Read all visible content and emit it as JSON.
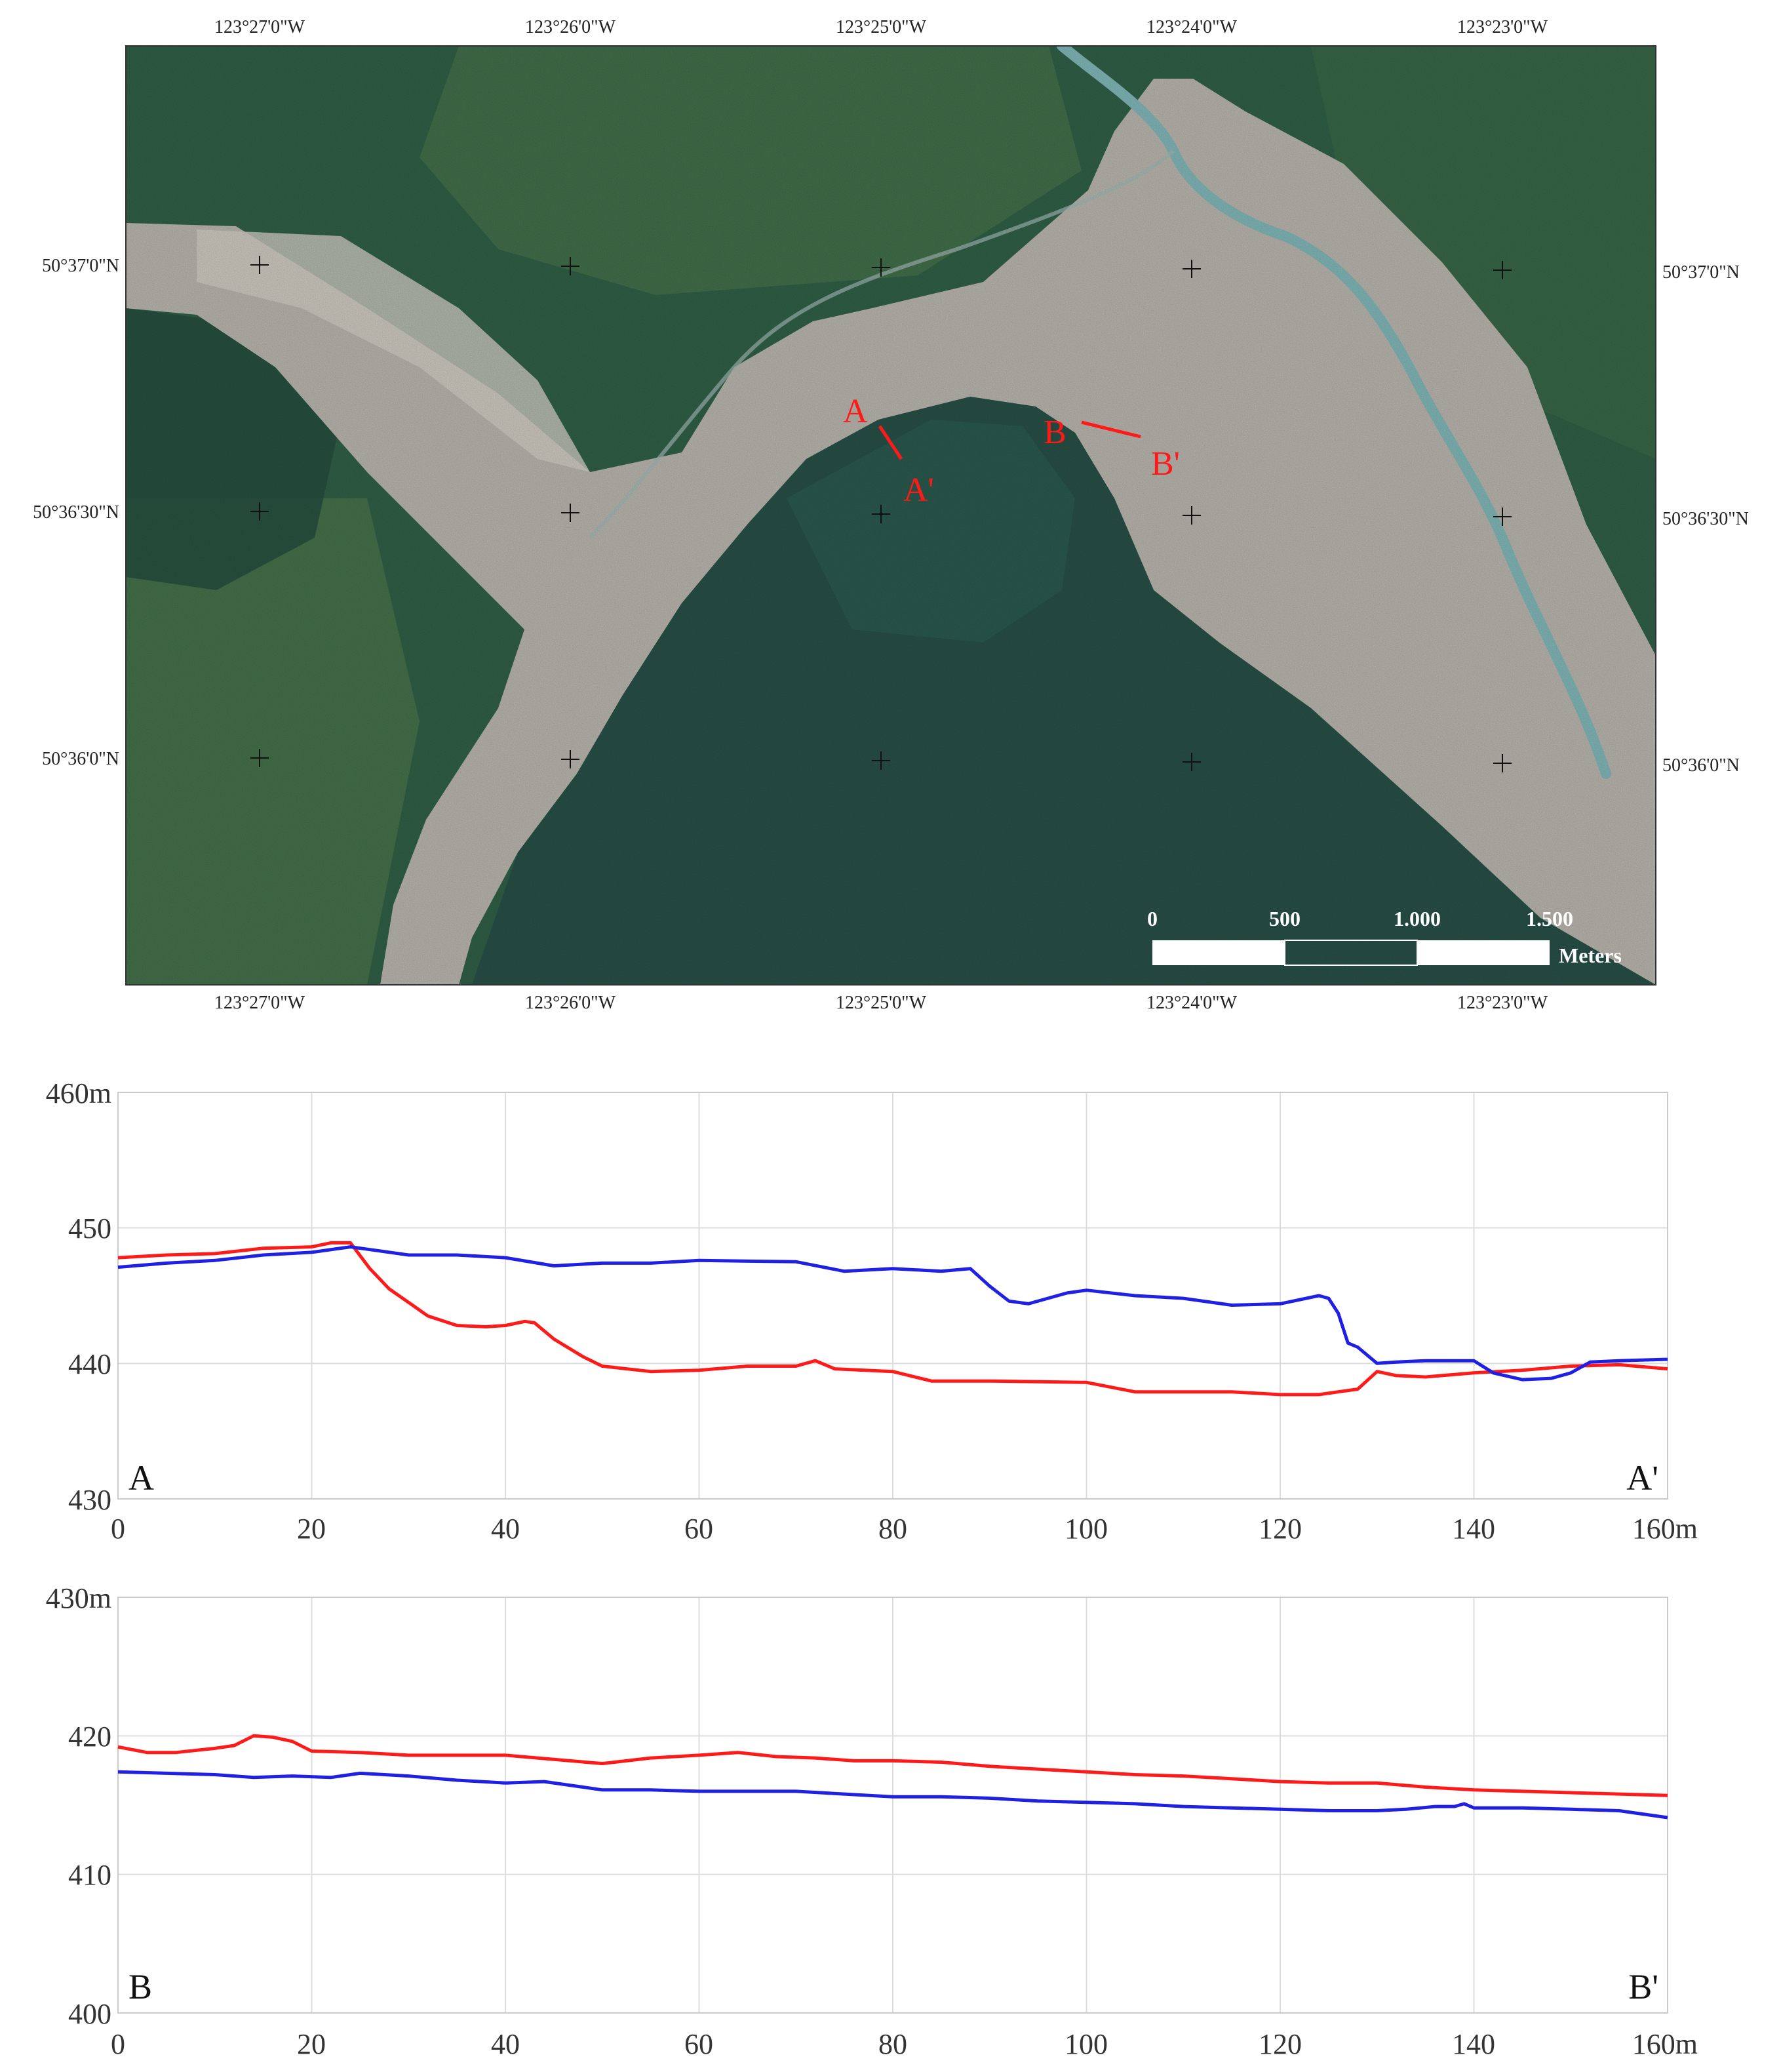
{
  "map": {
    "top_longitudes": [
      "123°27'0\"W",
      "123°26'0\"W",
      "123°25'0\"W",
      "123°24'0\"W",
      "123°23'0\"W"
    ],
    "bottom_longitudes": [
      "123°27'0\"W",
      "123°26'0\"W",
      "123°25'0\"W",
      "123°24'0\"W",
      "123°23'0\"W"
    ],
    "left_latitudes": [
      "50°37'0\"N",
      "50°36'30\"N",
      "50°36'0\"N"
    ],
    "right_latitudes": [
      "50°37'0\"N",
      "50°36'30\"N",
      "50°36'0\"N"
    ],
    "profile_labels": {
      "a_start": "A",
      "a_end": "A'",
      "b_start": "B",
      "b_end": "B'"
    },
    "profile_line_color": "#ff1a1a",
    "scale_bar": {
      "ticks": [
        "0",
        "500",
        "1.000",
        "1.500"
      ],
      "unit": "Meters"
    },
    "colors": {
      "forest": "#2f5e45",
      "deposit": "#b6b3ab",
      "river": "#7fb4b5",
      "shadow": "#274f45"
    }
  },
  "chart_data": [
    {
      "type": "line",
      "profile": "A-A'",
      "corner_left": "A",
      "corner_right": "A'",
      "xlim": [
        0,
        160
      ],
      "ylim": [
        430,
        460
      ],
      "x_ticks": [
        "0",
        "20",
        "40",
        "60",
        "80",
        "100",
        "120",
        "140",
        "160m"
      ],
      "y_ticks": [
        "430",
        "440",
        "450",
        "460m"
      ],
      "grid": true,
      "series": [
        {
          "color": "#ff1a1a",
          "x": [
            0,
            5,
            10,
            15,
            20,
            22,
            24,
            26,
            28,
            30,
            32,
            35,
            38,
            40,
            42,
            43,
            45,
            48,
            50,
            55,
            60,
            65,
            70,
            72,
            74,
            80,
            84,
            90,
            100,
            105,
            110,
            115,
            120,
            124,
            126,
            128,
            130,
            132,
            135,
            140,
            145,
            150,
            155,
            160
          ],
          "y": [
            447.8,
            448.0,
            448.1,
            448.5,
            448.6,
            448.9,
            448.9,
            447.0,
            445.5,
            444.5,
            443.5,
            442.8,
            442.7,
            442.8,
            443.1,
            443.0,
            441.8,
            440.5,
            439.8,
            439.4,
            439.5,
            439.8,
            439.8,
            440.2,
            439.6,
            439.4,
            438.7,
            438.7,
            438.6,
            437.9,
            437.9,
            437.9,
            437.7,
            437.7,
            437.9,
            438.1,
            439.4,
            439.1,
            439.0,
            439.3,
            439.5,
            439.8,
            439.9,
            439.6
          ]
        },
        {
          "color": "#1f1fe6",
          "x": [
            0,
            5,
            10,
            15,
            20,
            24,
            26,
            30,
            35,
            40,
            45,
            50,
            55,
            60,
            70,
            75,
            80,
            85,
            88,
            90,
            92,
            94,
            96,
            98,
            100,
            105,
            110,
            115,
            120,
            124,
            125,
            126,
            127,
            128,
            130,
            132,
            135,
            140,
            142,
            145,
            148,
            150,
            152,
            155,
            160
          ],
          "y": [
            447.1,
            447.4,
            447.6,
            448.0,
            448.2,
            448.6,
            448.4,
            448.0,
            448.0,
            447.8,
            447.2,
            447.4,
            447.4,
            447.6,
            447.5,
            446.8,
            447.0,
            446.8,
            447.0,
            445.7,
            444.6,
            444.4,
            444.8,
            445.2,
            445.4,
            445.0,
            444.8,
            444.3,
            444.4,
            445.0,
            444.8,
            443.7,
            441.5,
            441.2,
            440.0,
            440.1,
            440.2,
            440.2,
            439.3,
            438.8,
            438.9,
            439.3,
            440.1,
            440.2,
            440.3
          ]
        }
      ]
    },
    {
      "type": "line",
      "profile": "B-B'",
      "corner_left": "B",
      "corner_right": "B'",
      "xlim": [
        0,
        160
      ],
      "ylim": [
        400,
        430
      ],
      "x_ticks": [
        "0",
        "20",
        "40",
        "60",
        "80",
        "100",
        "120",
        "140",
        "160m"
      ],
      "y_ticks": [
        "400",
        "410",
        "420",
        "430m"
      ],
      "grid": true,
      "series": [
        {
          "color": "#ff1a1a",
          "x": [
            0,
            3,
            6,
            10,
            12,
            14,
            16,
            18,
            20,
            25,
            30,
            35,
            40,
            45,
            50,
            55,
            60,
            64,
            68,
            72,
            76,
            80,
            85,
            90,
            95,
            100,
            105,
            110,
            115,
            120,
            125,
            130,
            135,
            140,
            145,
            150,
            155,
            160
          ],
          "y": [
            419.2,
            418.8,
            418.8,
            419.1,
            419.3,
            420.0,
            419.9,
            419.6,
            418.9,
            418.8,
            418.6,
            418.6,
            418.6,
            418.3,
            418.0,
            418.4,
            418.6,
            418.8,
            418.5,
            418.4,
            418.2,
            418.2,
            418.1,
            417.8,
            417.6,
            417.4,
            417.2,
            417.1,
            416.9,
            416.7,
            416.6,
            416.6,
            416.3,
            416.1,
            416.0,
            415.9,
            415.8,
            415.7
          ]
        },
        {
          "color": "#1f1fe6",
          "x": [
            0,
            5,
            10,
            14,
            18,
            22,
            25,
            30,
            35,
            40,
            44,
            48,
            50,
            55,
            60,
            65,
            70,
            75,
            80,
            85,
            90,
            95,
            100,
            105,
            110,
            115,
            120,
            125,
            130,
            133,
            136,
            138,
            139,
            140,
            145,
            150,
            155,
            160
          ],
          "y": [
            417.4,
            417.3,
            417.2,
            417.0,
            417.1,
            417.0,
            417.3,
            417.1,
            416.8,
            416.6,
            416.7,
            416.3,
            416.1,
            416.1,
            416.0,
            416.0,
            416.0,
            415.8,
            415.6,
            415.6,
            415.5,
            415.3,
            415.2,
            415.1,
            414.9,
            414.8,
            414.7,
            414.6,
            414.6,
            414.7,
            414.9,
            414.9,
            415.1,
            414.8,
            414.8,
            414.7,
            414.6,
            414.1
          ]
        }
      ]
    }
  ]
}
